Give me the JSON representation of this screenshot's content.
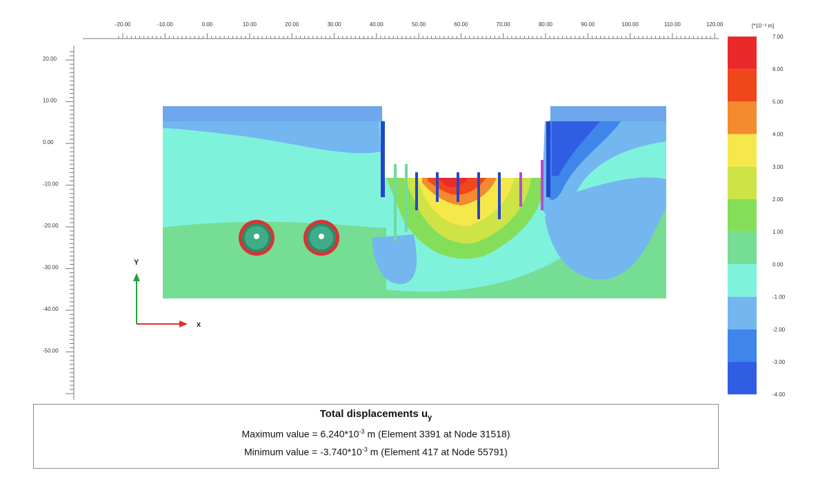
{
  "figure": {
    "title_main": "Total displacements u",
    "title_sub": "y",
    "max_line": {
      "prefix": "Maximum value = 6.240*10",
      "exp": "-3",
      "suffix": " m (Element 3391 at Node 31518)"
    },
    "min_line": {
      "prefix": "Minimum value = -3.740*10",
      "exp": "-3",
      "suffix": " m (Element 417 at Node 55791)"
    },
    "axes": {
      "x_ticks": [
        "-20.00",
        "-10.00",
        "0.00",
        "10.00",
        "20.00",
        "30.00",
        "40.00",
        "50.00",
        "60.00",
        "70.00",
        "80.00",
        "90.00",
        "100.00",
        "110.00",
        "120.00"
      ],
      "y_ticks": [
        "20.00",
        "10.00",
        "0.00",
        "-10.00",
        "-20.00",
        "-30.00",
        "-40.00",
        "-50.00"
      ],
      "x_axis_label": "x",
      "y_axis_label": "Y"
    },
    "legend": {
      "unit_label": "[*10⁻³ m]",
      "levels": [
        "7.00",
        "6.00",
        "5.00",
        "4.00",
        "3.00",
        "2.00",
        "1.00",
        "0.00",
        "-1.00",
        "-2.00",
        "-3.00",
        "-4.00"
      ],
      "colors": [
        "#ea2a2a",
        "#f0461c",
        "#f38a2e",
        "#f6e84a",
        "#cde346",
        "#84de5a",
        "#76dd95",
        "#7ff2dc",
        "#74b6ef",
        "#3f86ea",
        "#2f5ee3"
      ]
    }
  }
}
